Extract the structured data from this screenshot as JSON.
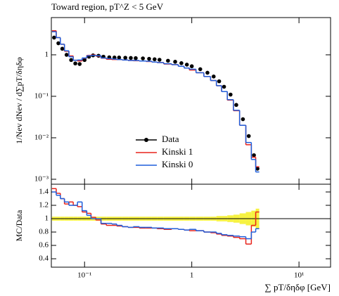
{
  "chart_data": [
    {
      "type": "step",
      "title": "Toward region, pT^Z < 5 GeV",
      "y_label": "1/Nev dNev / d∑pT/δηδφ",
      "log_x": true,
      "log_y": true,
      "xlim": [
        0.049,
        19.7
      ],
      "ylim": [
        0.00076,
        7.9
      ],
      "yticks": [
        {
          "value": 0.001,
          "label": "10⁻³"
        },
        {
          "value": 0.01,
          "label": "10⁻²"
        },
        {
          "value": 0.1,
          "label": "10⁻¹"
        },
        1
      ],
      "x": [
        0.052,
        0.057,
        0.062,
        0.068,
        0.075,
        0.082,
        0.09,
        0.1,
        0.11,
        0.12,
        0.135,
        0.15,
        0.17,
        0.19,
        0.21,
        0.24,
        0.27,
        0.3,
        0.35,
        0.4,
        0.45,
        0.5,
        0.6,
        0.7,
        0.8,
        0.9,
        1.0,
        1.2,
        1.4,
        1.6,
        1.8,
        2.0,
        2.3,
        2.6,
        3.0,
        3.4,
        3.8,
        4.1
      ],
      "series": [
        {
          "name": "Data",
          "color": "#000000",
          "marker": "circle",
          "values": [
            2.6,
            1.9,
            1.4,
            1.0,
            0.75,
            0.62,
            0.6,
            0.75,
            0.9,
            0.97,
            0.95,
            0.9,
            0.87,
            0.86,
            0.86,
            0.85,
            0.84,
            0.83,
            0.82,
            0.8,
            0.78,
            0.76,
            0.72,
            0.68,
            0.63,
            0.58,
            0.53,
            0.45,
            0.37,
            0.3,
            0.23,
            0.17,
            0.11,
            0.062,
            0.028,
            0.011,
            0.0038,
            0.0018
          ]
        },
        {
          "name": "Kinski 1",
          "color": "#e8231b",
          "values": [
            3.8,
            2.6,
            1.8,
            1.22,
            0.94,
            0.74,
            0.71,
            0.83,
            0.97,
            0.99,
            0.93,
            0.83,
            0.78,
            0.77,
            0.77,
            0.75,
            0.73,
            0.72,
            0.71,
            0.69,
            0.67,
            0.65,
            0.6,
            0.58,
            0.53,
            0.48,
            0.43,
            0.37,
            0.3,
            0.24,
            0.18,
            0.13,
            0.081,
            0.045,
            0.02,
            0.0068,
            0.0034,
            0.002
          ]
        },
        {
          "name": "Kinski 0",
          "color": "#1f5fdc",
          "values": [
            3.6,
            2.6,
            1.8,
            1.25,
            0.9,
            0.74,
            0.75,
            0.84,
            0.95,
            0.97,
            0.95,
            0.84,
            0.81,
            0.79,
            0.77,
            0.75,
            0.73,
            0.73,
            0.71,
            0.7,
            0.67,
            0.65,
            0.61,
            0.58,
            0.53,
            0.48,
            0.45,
            0.37,
            0.3,
            0.24,
            0.18,
            0.13,
            0.083,
            0.046,
            0.02,
            0.0077,
            0.003,
            0.0015
          ]
        }
      ]
    },
    {
      "type": "step",
      "y_label": "MC/Data",
      "x_label": "∑ pT/δηδφ [GeV]",
      "log_x": true,
      "log_y": false,
      "xlim": [
        0.049,
        19.7
      ],
      "ylim": [
        0.274,
        1.516
      ],
      "xticks": [
        {
          "value": 0.1,
          "label": "10⁻¹"
        },
        1,
        {
          "value": 10,
          "label": "10¹"
        }
      ],
      "yticks": [
        0.4,
        0.6,
        0.8,
        1,
        1.2,
        1.4
      ],
      "reference": 1,
      "band": {
        "color": "#f5f020",
        "values": [
          0.03,
          0.03,
          0.03,
          0.03,
          0.03,
          0.03,
          0.03,
          0.03,
          0.03,
          0.03,
          0.03,
          0.03,
          0.03,
          0.03,
          0.03,
          0.03,
          0.03,
          0.03,
          0.03,
          0.03,
          0.03,
          0.03,
          0.03,
          0.03,
          0.03,
          0.03,
          0.03,
          0.03,
          0.03,
          0.03,
          0.04,
          0.04,
          0.05,
          0.06,
          0.08,
          0.1,
          0.12,
          0.15
        ]
      },
      "x": [
        0.052,
        0.057,
        0.062,
        0.068,
        0.075,
        0.082,
        0.09,
        0.1,
        0.11,
        0.12,
        0.135,
        0.15,
        0.17,
        0.19,
        0.21,
        0.24,
        0.27,
        0.3,
        0.35,
        0.4,
        0.45,
        0.5,
        0.6,
        0.7,
        0.8,
        0.9,
        1.0,
        1.2,
        1.4,
        1.6,
        1.8,
        2.0,
        2.3,
        2.6,
        3.0,
        3.4,
        3.8,
        4.1
      ],
      "series": [
        {
          "name": "Kinski 1",
          "color": "#e8231b",
          "values": [
            1.45,
            1.38,
            1.3,
            1.22,
            1.25,
            1.2,
            1.18,
            1.1,
            1.08,
            1.02,
            0.98,
            0.92,
            0.9,
            0.9,
            0.89,
            0.88,
            0.87,
            0.87,
            0.86,
            0.86,
            0.86,
            0.85,
            0.84,
            0.85,
            0.84,
            0.83,
            0.82,
            0.82,
            0.8,
            0.79,
            0.77,
            0.75,
            0.74,
            0.72,
            0.7,
            0.62,
            0.9,
            1.1
          ]
        },
        {
          "name": "Kinski 0",
          "color": "#1f5fdc",
          "values": [
            1.4,
            1.35,
            1.3,
            1.25,
            1.2,
            1.2,
            1.25,
            1.12,
            1.05,
            1.0,
            1.0,
            0.93,
            0.93,
            0.92,
            0.9,
            0.88,
            0.87,
            0.88,
            0.87,
            0.87,
            0.86,
            0.86,
            0.85,
            0.85,
            0.84,
            0.83,
            0.84,
            0.82,
            0.8,
            0.8,
            0.78,
            0.76,
            0.75,
            0.74,
            0.73,
            0.7,
            0.8,
            0.85
          ]
        }
      ]
    }
  ]
}
